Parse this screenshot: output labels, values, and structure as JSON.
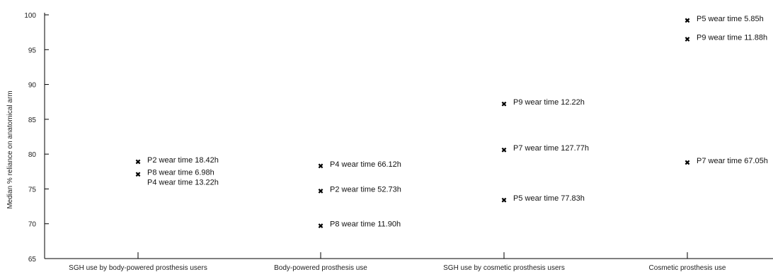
{
  "chart_data": {
    "type": "scatter",
    "ylabel": "Median % reliance on anatomical arm",
    "ylim": [
      65,
      100
    ],
    "yticks": [
      65,
      70,
      75,
      80,
      85,
      90,
      95,
      100
    ],
    "grid": false,
    "categories": [
      "SGH use by body-powered prosthesis users",
      "Body-powered prosthesis use",
      "SGH use by cosmetic prosthesis users",
      "Cosmetic prosthesis use"
    ],
    "points": [
      {
        "category": 0,
        "y": 78.9,
        "label": "P2 wear time 18.42h"
      },
      {
        "category": 0,
        "y": 77.1,
        "label": "P8 wear time 6.98h"
      },
      {
        "category": 0,
        "y": null,
        "label": "P4 wear time 13.22h"
      },
      {
        "category": 1,
        "y": 78.3,
        "label": "P4 wear time 66.12h"
      },
      {
        "category": 1,
        "y": 74.7,
        "label": "P2 wear time 52.73h"
      },
      {
        "category": 1,
        "y": 69.7,
        "label": "P8 wear time 11.90h"
      },
      {
        "category": 2,
        "y": 87.2,
        "label": "P9 wear time 12.22h"
      },
      {
        "category": 2,
        "y": 80.6,
        "label": "P7 wear time 127.77h"
      },
      {
        "category": 2,
        "y": 73.4,
        "label": "P5 wear time 77.83h"
      },
      {
        "category": 3,
        "y": 99.2,
        "label": "P5 wear time 5.85h"
      },
      {
        "category": 3,
        "y": 96.5,
        "label": "P9 wear time 11.88h"
      },
      {
        "category": 3,
        "y": 78.8,
        "label": "P7 wear time 67.05h"
      }
    ]
  }
}
